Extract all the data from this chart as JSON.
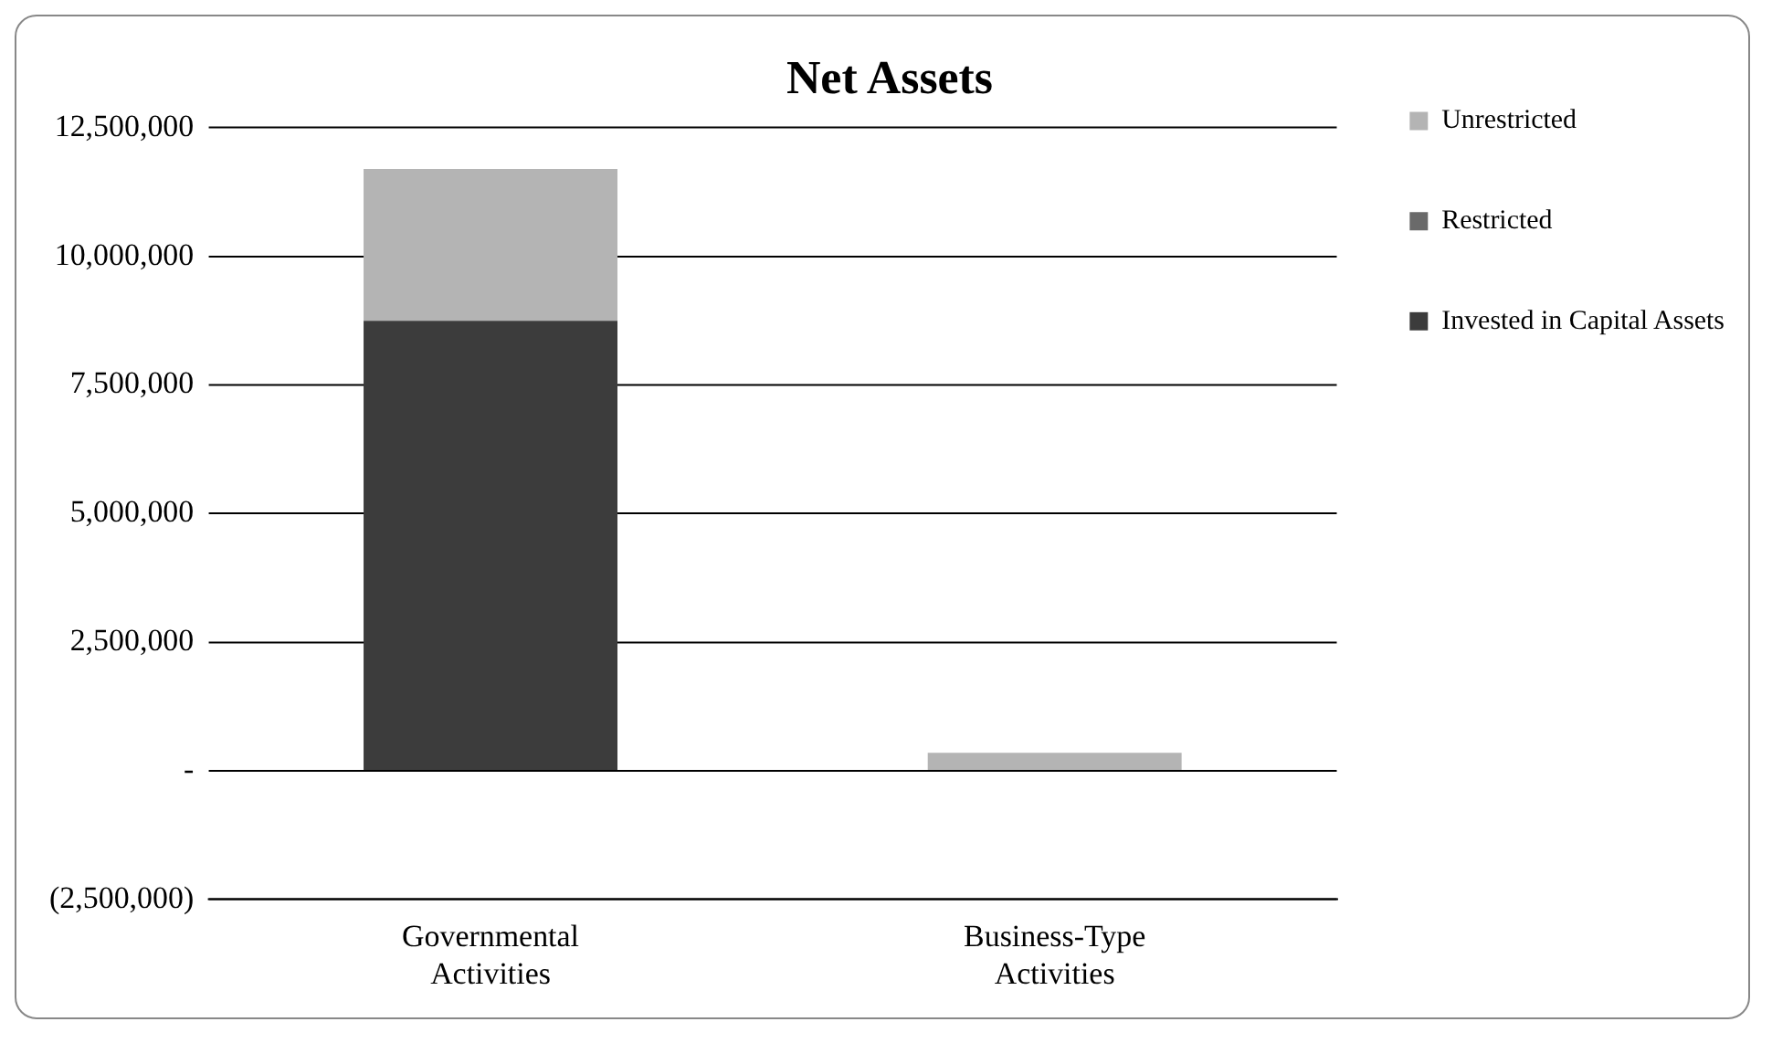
{
  "chart_data": {
    "type": "bar",
    "title": "Net Assets",
    "categories": [
      "Governmental Activities",
      "Business-Type Activities"
    ],
    "stacked": true,
    "series": [
      {
        "name": "Invested in Capital Assets",
        "color": "#3c3c3c",
        "values": [
          8750000,
          0
        ]
      },
      {
        "name": "Restricted",
        "color": "#6a6a6a",
        "values": [
          0,
          0
        ]
      },
      {
        "name": "Unrestricted",
        "color": "#b4b4b4",
        "values": [
          2950000,
          350000
        ]
      }
    ],
    "ylim": [
      -2500000,
      12500000
    ],
    "yticks": [
      {
        "value": -2500000,
        "label": "(2,500,000)"
      },
      {
        "value": 0,
        "label": "-"
      },
      {
        "value": 2500000,
        "label": "2,500,000"
      },
      {
        "value": 5000000,
        "label": "5,000,000"
      },
      {
        "value": 7500000,
        "label": "7,500,000"
      },
      {
        "value": 10000000,
        "label": "10,000,000"
      },
      {
        "value": 12500000,
        "label": "12,500,000"
      }
    ],
    "grid": "y",
    "legend": "right"
  }
}
